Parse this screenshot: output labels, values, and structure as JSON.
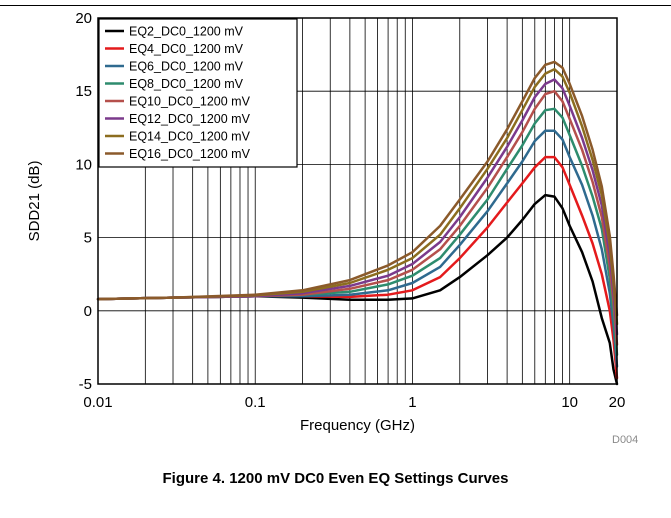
{
  "caption": "Figure 4. 1200 mV DC0 Even EQ Settings Curves",
  "chart_data": {
    "type": "line",
    "xlabel": "Frequency (GHz)",
    "ylabel": "SDD21 (dB)",
    "x_scale": "log",
    "xlim": [
      0.01,
      20
    ],
    "ylim": [
      -5,
      20
    ],
    "x_ticks": [
      {
        "value": 0.01,
        "label": "0.01"
      },
      {
        "value": 0.1,
        "label": "0.1"
      },
      {
        "value": 1,
        "label": "1"
      },
      {
        "value": 10,
        "label": "10"
      },
      {
        "value": 20,
        "label": "20"
      }
    ],
    "y_ticks": [
      {
        "value": -5,
        "label": "-5"
      },
      {
        "value": 0,
        "label": "0"
      },
      {
        "value": 5,
        "label": "5"
      },
      {
        "value": 10,
        "label": "10"
      },
      {
        "value": 15,
        "label": "15"
      },
      {
        "value": 20,
        "label": "20"
      }
    ],
    "grid": true,
    "legend_position": "top-left",
    "figure_id": "D004",
    "x": [
      0.01,
      0.03,
      0.1,
      0.2,
      0.4,
      0.7,
      1,
      1.5,
      2,
      3,
      4,
      5,
      6,
      7,
      8,
      9,
      10,
      12,
      14,
      16,
      18,
      19,
      20
    ],
    "series": [
      {
        "name": "EQ2_DC0_1200 mV",
        "color": "#000000",
        "values": [
          0.8,
          0.9,
          1.0,
          0.9,
          0.75,
          0.75,
          0.85,
          1.4,
          2.3,
          3.8,
          5.0,
          6.2,
          7.3,
          7.9,
          7.8,
          7.0,
          5.8,
          4.0,
          2.0,
          -0.5,
          -2.2,
          -4.0,
          -5.0
        ]
      },
      {
        "name": "EQ4_DC0_1200 mV",
        "color": "#e41a1c",
        "values": [
          0.8,
          0.9,
          1.0,
          1.0,
          0.95,
          1.1,
          1.4,
          2.3,
          3.6,
          5.7,
          7.4,
          8.7,
          9.8,
          10.5,
          10.5,
          9.8,
          8.6,
          6.5,
          4.6,
          2.5,
          0.0,
          -2.0,
          -4.6
        ]
      },
      {
        "name": "EQ6_DC0_1200 mV",
        "color": "#2f6a8f",
        "values": [
          0.8,
          0.9,
          1.0,
          1.0,
          1.1,
          1.4,
          1.9,
          3.0,
          4.5,
          6.8,
          8.7,
          10.2,
          11.6,
          12.3,
          12.3,
          11.7,
          10.5,
          8.6,
          6.5,
          4.2,
          1.2,
          -1.0,
          -3.8
        ]
      },
      {
        "name": "EQ8_DC0_1200 mV",
        "color": "#2e8c6e",
        "values": [
          0.8,
          0.9,
          1.0,
          1.1,
          1.3,
          1.8,
          2.4,
          3.6,
          5.2,
          7.6,
          9.7,
          11.3,
          12.8,
          13.7,
          13.8,
          13.2,
          12.0,
          9.9,
          7.8,
          5.6,
          2.2,
          -0.2,
          -3.0
        ]
      },
      {
        "name": "EQ10_DC0_1200 mV",
        "color": "#b5504c",
        "values": [
          0.8,
          0.9,
          1.0,
          1.1,
          1.5,
          2.1,
          2.8,
          4.2,
          5.8,
          8.4,
          10.5,
          12.2,
          13.8,
          14.8,
          15.0,
          14.3,
          13.1,
          11.0,
          8.8,
          6.4,
          3.0,
          0.6,
          -2.3
        ]
      },
      {
        "name": "EQ12_DC0_1200 mV",
        "color": "#7b3a8c",
        "values": [
          0.8,
          0.9,
          1.0,
          1.2,
          1.7,
          2.4,
          3.2,
          4.7,
          6.4,
          9.1,
          11.2,
          13.0,
          14.6,
          15.5,
          15.8,
          15.2,
          14.0,
          11.8,
          9.6,
          7.2,
          3.8,
          1.2,
          -1.6
        ]
      },
      {
        "name": "EQ14_DC0_1200 mV",
        "color": "#8c6d1f",
        "values": [
          0.8,
          0.9,
          1.05,
          1.3,
          1.9,
          2.8,
          3.6,
          5.2,
          7.0,
          9.7,
          11.8,
          13.7,
          15.3,
          16.2,
          16.5,
          16.0,
          14.9,
          12.6,
          10.3,
          7.9,
          4.5,
          1.9,
          -0.9
        ]
      },
      {
        "name": "EQ16_DC0_1200 mV",
        "color": "#8b5a2b",
        "values": [
          0.8,
          0.9,
          1.1,
          1.4,
          2.1,
          3.1,
          4.0,
          5.8,
          7.6,
          10.2,
          12.4,
          14.3,
          15.9,
          16.8,
          17.0,
          16.6,
          15.5,
          13.3,
          11.0,
          8.5,
          5.1,
          2.5,
          -0.3
        ]
      }
    ]
  }
}
